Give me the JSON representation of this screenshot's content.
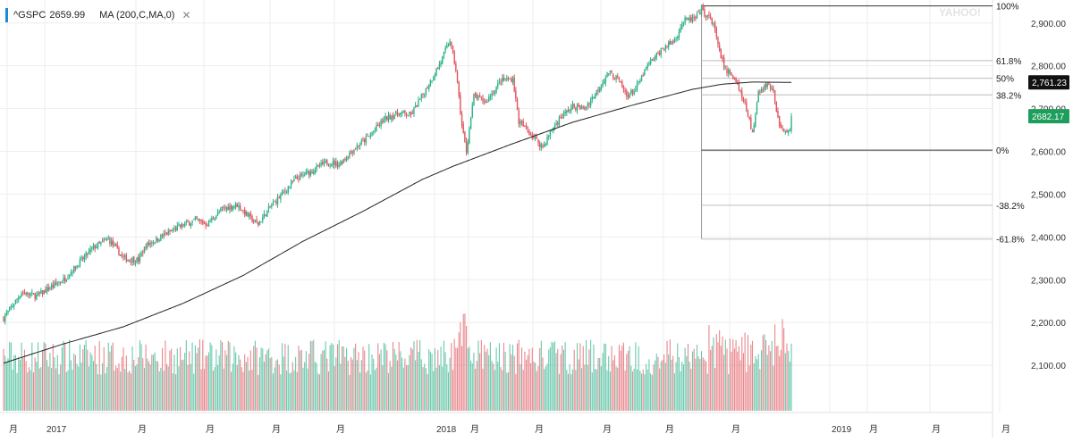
{
  "legend": {
    "symbol": "^GSPC",
    "last": "2659.99",
    "indicator": "MA (200,C,MA,0)",
    "close_icon": "close-icon",
    "marker_color": "#1a8bd6"
  },
  "watermark": "YAHOO!",
  "colors": {
    "up": "#2bb28a",
    "down": "#e0555e",
    "ma": "#222222",
    "grid": "#eeeeee",
    "fib": "#999999",
    "current_price_badge": "#1d9e5b",
    "ma_badge": "#111111"
  },
  "chart_data": {
    "type": "candlestick",
    "title": "^GSPC",
    "ylabel": "",
    "xlabel": "",
    "ylim": [
      2000,
      2960
    ],
    "y_ticks": [
      2100,
      2200,
      2300,
      2400,
      2500,
      2600,
      2700,
      2800,
      2900
    ],
    "y_tick_labels": [
      "2,100.00",
      "2,200.00",
      "2,300.00",
      "2,400.00",
      "2,500.00",
      "2,600.00",
      "2,700.00",
      "2,800.00",
      "2,900.00"
    ],
    "x_tick_labels": [
      "月",
      "2017",
      "月",
      "月",
      "月",
      "月",
      "2018",
      "月",
      "月",
      "月",
      "月",
      "月",
      "2019",
      "月",
      "月",
      "月"
    ],
    "price_path": {
      "anchors": [
        [
          0,
          2210
        ],
        [
          12,
          2270
        ],
        [
          22,
          2262
        ],
        [
          40,
          2300
        ],
        [
          60,
          2375
        ],
        [
          70,
          2395
        ],
        [
          80,
          2350
        ],
        [
          90,
          2345
        ],
        [
          95,
          2380
        ],
        [
          105,
          2400
        ],
        [
          118,
          2425
        ],
        [
          128,
          2440
        ],
        [
          136,
          2430
        ],
        [
          146,
          2465
        ],
        [
          156,
          2475
        ],
        [
          166,
          2440
        ],
        [
          170,
          2430
        ],
        [
          178,
          2470
        ],
        [
          186,
          2500
        ],
        [
          195,
          2535
        ],
        [
          206,
          2555
        ],
        [
          216,
          2575
        ],
        [
          224,
          2570
        ],
        [
          232,
          2600
        ],
        [
          244,
          2635
        ],
        [
          254,
          2675
        ],
        [
          264,
          2690
        ],
        [
          272,
          2685
        ],
        [
          282,
          2745
        ],
        [
          292,
          2810
        ],
        [
          298,
          2860
        ],
        [
          302,
          2790
        ],
        [
          306,
          2660
        ],
        [
          309,
          2600
        ],
        [
          314,
          2730
        ],
        [
          322,
          2715
        ],
        [
          332,
          2765
        ],
        [
          340,
          2770
        ],
        [
          344,
          2670
        ],
        [
          352,
          2640
        ],
        [
          360,
          2610
        ],
        [
          366,
          2650
        ],
        [
          372,
          2680
        ],
        [
          380,
          2705
        ],
        [
          388,
          2700
        ],
        [
          396,
          2740
        ],
        [
          404,
          2785
        ],
        [
          410,
          2770
        ],
        [
          416,
          2730
        ],
        [
          422,
          2745
        ],
        [
          430,
          2800
        ],
        [
          440,
          2840
        ],
        [
          448,
          2860
        ],
        [
          454,
          2905
        ],
        [
          462,
          2910
        ],
        [
          466,
          2930
        ],
        [
          470,
          2915
        ],
        [
          474,
          2900
        ],
        [
          478,
          2830
        ],
        [
          482,
          2790
        ],
        [
          486,
          2780
        ],
        [
          490,
          2760
        ],
        [
          496,
          2700
        ],
        [
          500,
          2640
        ],
        [
          504,
          2735
        ],
        [
          510,
          2760
        ],
        [
          514,
          2735
        ],
        [
          518,
          2660
        ],
        [
          522,
          2640
        ],
        [
          526,
          2660
        ]
      ],
      "last_close": 2682.17
    },
    "moving_average_200": {
      "anchors": [
        [
          0,
          2105
        ],
        [
          40,
          2150
        ],
        [
          80,
          2190
        ],
        [
          120,
          2245
        ],
        [
          160,
          2310
        ],
        [
          200,
          2390
        ],
        [
          240,
          2460
        ],
        [
          280,
          2535
        ],
        [
          300,
          2565
        ],
        [
          340,
          2618
        ],
        [
          380,
          2668
        ],
        [
          420,
          2708
        ],
        [
          460,
          2745
        ],
        [
          480,
          2757
        ],
        [
          500,
          2762
        ],
        [
          526,
          2761.23
        ]
      ],
      "last_value": 2761.23
    },
    "fibonacci": {
      "start_session": 466,
      "high": 2940,
      "low": 2603,
      "levels": [
        {
          "label": "100%",
          "price": 2940,
          "full": true
        },
        {
          "label": "61.8%",
          "price": 2812
        },
        {
          "label": "50%",
          "price": 2771
        },
        {
          "label": "38.2%",
          "price": 2732
        },
        {
          "label": "0%",
          "price": 2603,
          "full": true
        },
        {
          "label": "-38.2%",
          "price": 2474
        },
        {
          "label": "-61.8%",
          "price": 2395
        }
      ]
    },
    "price_badges": [
      {
        "label": "2,761.23",
        "price": 2761.23,
        "kind": "ma"
      },
      {
        "label": "2682.17",
        "price": 2682.17,
        "kind": "current"
      }
    ],
    "sessions": 526,
    "volume_note": "Volume bars colored by candle direction; relative scale only"
  }
}
